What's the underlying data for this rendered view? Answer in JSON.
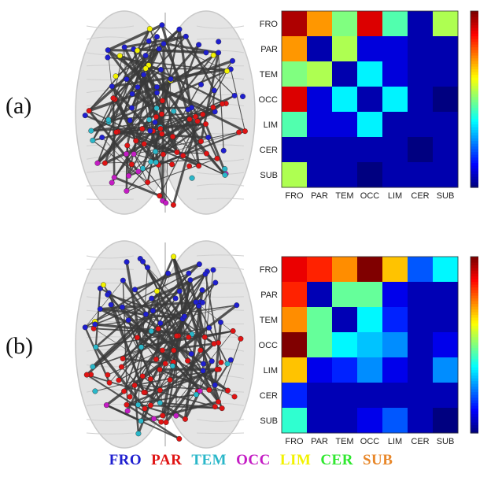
{
  "panels": [
    {
      "label": "(a)"
    },
    {
      "label": "(b)"
    }
  ],
  "legend": [
    {
      "text": "FRO",
      "color": "#1f1fd0"
    },
    {
      "text": "PAR",
      "color": "#e01414"
    },
    {
      "text": "TEM",
      "color": "#2ab7c9"
    },
    {
      "text": "OCC",
      "color": "#c41cc4"
    },
    {
      "text": "LIM",
      "color": "#f2f200"
    },
    {
      "text": "CER",
      "color": "#2ee82e"
    },
    {
      "text": "SUB",
      "color": "#e8872a"
    }
  ],
  "chart_data": [
    {
      "type": "heatmap",
      "panel": "(a)",
      "rows": [
        "FRO",
        "PAR",
        "TEM",
        "OCC",
        "LIM",
        "CER",
        "SUB"
      ],
      "cols": [
        "FRO",
        "PAR",
        "TEM",
        "OCC",
        "LIM",
        "CER",
        "SUB"
      ],
      "values": [
        [
          21,
          16,
          11,
          20,
          10,
          1,
          12
        ],
        [
          16,
          1,
          12,
          2,
          2,
          1,
          1
        ],
        [
          11,
          12,
          1,
          8,
          2,
          1,
          1
        ],
        [
          20,
          2,
          8,
          1,
          8,
          1,
          0
        ],
        [
          10,
          2,
          2,
          8,
          1,
          1,
          1
        ],
        [
          1,
          1,
          1,
          1,
          1,
          0,
          1
        ],
        [
          12,
          1,
          1,
          0,
          1,
          1,
          1
        ]
      ],
      "colorbar": {
        "range": [
          0,
          22
        ],
        "ticks": [
          0,
          5,
          10,
          15,
          20
        ]
      }
    },
    {
      "type": "heatmap",
      "panel": "(b)",
      "rows": [
        "FRO",
        "PAR",
        "TEM",
        "OCC",
        "LIM",
        "CER",
        "SUB"
      ],
      "cols": [
        "FRO",
        "PAR",
        "TEM",
        "OCC",
        "LIM",
        "CER",
        "SUB"
      ],
      "values": [
        [
          17,
          16,
          14,
          19,
          13,
          4,
          7
        ],
        [
          16,
          1,
          9,
          9,
          2,
          1,
          1
        ],
        [
          14,
          9,
          1,
          7,
          3,
          1,
          1
        ],
        [
          19,
          9,
          7,
          6,
          5,
          1,
          2
        ],
        [
          13,
          2,
          3,
          5,
          2,
          1,
          5
        ],
        [
          3,
          1,
          1,
          1,
          1,
          1,
          1
        ],
        [
          8,
          1,
          1,
          2,
          4,
          1,
          0
        ]
      ],
      "colorbar": {
        "range": [
          0,
          19
        ],
        "ticks": [
          0,
          5,
          10,
          15
        ]
      }
    }
  ]
}
